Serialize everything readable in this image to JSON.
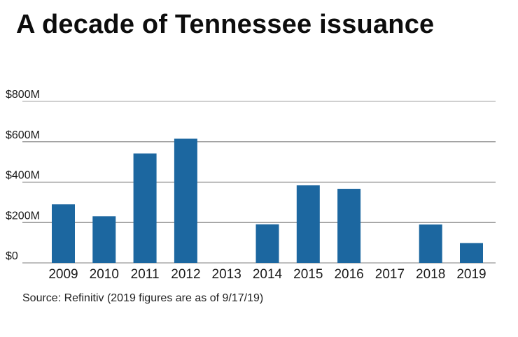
{
  "chart_data": {
    "type": "bar",
    "title": "A decade of Tennessee issuance",
    "xlabel": "",
    "ylabel": "",
    "categories": [
      "2009",
      "2010",
      "2011",
      "2012",
      "2013",
      "2014",
      "2015",
      "2016",
      "2017",
      "2018",
      "2019"
    ],
    "values": [
      290,
      231,
      542,
      615,
      0,
      191,
      384,
      367,
      0,
      190,
      98
    ],
    "units": "$M",
    "ylim": [
      0,
      800
    ],
    "y_ticks": [
      {
        "value": 0,
        "label": "$0"
      },
      {
        "value": 200,
        "label": "$200M"
      },
      {
        "value": 400,
        "label": "$400M"
      },
      {
        "value": 600,
        "label": "$600M"
      },
      {
        "value": 800,
        "label": "$800M"
      }
    ],
    "grid": true,
    "legend": "none",
    "bar_color": "#1c67a0",
    "source": "Source: Refinitiv (2019 figures are as of 9/17/19)"
  }
}
